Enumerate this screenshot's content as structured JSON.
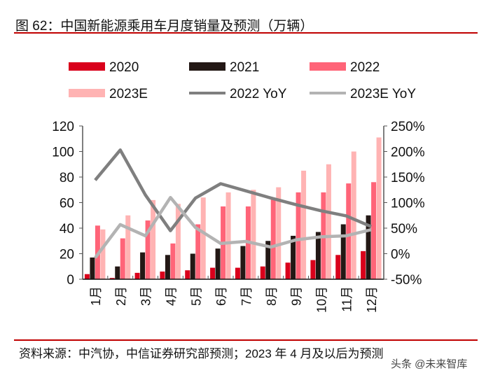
{
  "title": "图 62：中国新能源乘用车月度销量及预测（万辆）",
  "source": "资料来源：中汽协，中信证券研究部预测；2023 年 4 月及以后为预测",
  "watermark": "头条 @未来智库",
  "chart_data": {
    "type": "bar",
    "title": "图 62：中国新能源乘用车月度销量及预测（万辆）",
    "categories": [
      "1月",
      "2月",
      "3月",
      "4月",
      "5月",
      "6月",
      "7月",
      "8月",
      "9月",
      "10月",
      "11月",
      "12月"
    ],
    "ylim": [
      0,
      120
    ],
    "yticks": [
      0,
      20,
      40,
      60,
      80,
      100,
      120
    ],
    "y2lim": [
      -50,
      250
    ],
    "y2ticks": [
      "-50%",
      "0%",
      "50%",
      "100%",
      "150%",
      "200%",
      "250%"
    ],
    "legend_position": "top",
    "bar_series": [
      {
        "name": "2020",
        "color": "#d9001b",
        "values": [
          4,
          1,
          5,
          6,
          7,
          9,
          9,
          10,
          13,
          15,
          19,
          22
        ]
      },
      {
        "name": "2021",
        "color": "#231815",
        "values": [
          17,
          10,
          21,
          19,
          20,
          24,
          26,
          30,
          34,
          37,
          43,
          50
        ]
      },
      {
        "name": "2022",
        "color": "#ff6478",
        "values": [
          42,
          32,
          46,
          28,
          43,
          57,
          57,
          63,
          68,
          68,
          75,
          76
        ]
      },
      {
        "name": "2023E",
        "color": "#ffb3b3",
        "values": [
          39,
          50,
          62,
          59,
          64,
          68,
          70,
          72,
          85,
          90,
          100,
          111
        ]
      }
    ],
    "line_series": [
      {
        "name": "2022 YoY",
        "color": "#7f7f7f",
        "axis": "right",
        "values": [
          144,
          203,
          115,
          45,
          109,
          137,
          123,
          109,
          96,
          84,
          74,
          53
        ]
      },
      {
        "name": "2023E YoY",
        "color": "#b3b3b3",
        "axis": "right",
        "values": [
          -8,
          57,
          35,
          110,
          51,
          20,
          24,
          13,
          27,
          33,
          35,
          47
        ]
      }
    ]
  }
}
